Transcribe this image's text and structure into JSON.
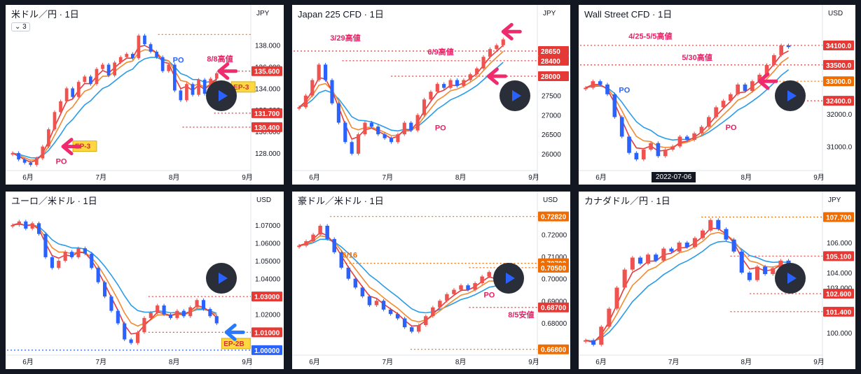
{
  "colors": {
    "up": "#ef5350",
    "down": "#2962ff",
    "ma_fast": "#e83a3a",
    "ma_mid": "#f28a2e",
    "ma_slow": "#2a9be8",
    "level": "#e53935",
    "orange_level": "#ef6c00",
    "annot": "#e91e63",
    "po": "#e91e63",
    "po_blue": "#2962ff",
    "ep_fill": "#ffd740",
    "ep_text": "#d32f2f",
    "arrow_pink": "#f02b6d",
    "arrow_blue": "#2979ff",
    "axis_text": "#131722"
  },
  "icons": {
    "play": "play-icon",
    "arrow": "arrow-icon",
    "interval": "chevron-down-icon"
  },
  "panels": [
    {
      "title": "米ドル／円 · 1日",
      "currency": "JPY",
      "interval_badge": "3",
      "chart_data": {
        "type": "candlestick",
        "title": "米ドル／円 · 1日",
        "ylim": [
          126.5,
          139.8
        ],
        "xlabels": [
          "6月",
          "7月",
          "8月",
          "9月"
        ],
        "yticks": [
          "138.000",
          "136.000",
          "134.000",
          "132.000",
          "130.000",
          "128.000"
        ],
        "series": [
          {
            "name": "price",
            "values": [
              128.0,
              127.4,
              127.1,
              126.9,
              127.5,
              128.6,
              130.2,
              131.8,
              132.8,
              134.0,
              133.2,
              134.6,
              135.1,
              134.4,
              135.8,
              136.2,
              135.2,
              136.4,
              136.9,
              137.2,
              136.8,
              138.9,
              138.1,
              137.4,
              136.9,
              135.6,
              136.2,
              133.8,
              132.9,
              134.4,
              133.4,
              134.8,
              133.5,
              134.9,
              135.4
            ]
          }
        ],
        "levels": [
          {
            "label": "",
            "price": 139.0,
            "color": "orange_level",
            "start": 0.62
          },
          {
            "label": "135.600",
            "price": 135.6,
            "color": "level",
            "start": 0.92
          },
          {
            "label": "131.700",
            "price": 131.7,
            "color": "level",
            "start": 0.85
          },
          {
            "label": "130.400",
            "price": 130.4,
            "color": "level",
            "start": 0.72
          }
        ],
        "annotations": [
          {
            "text": "PO",
            "x": 0.2,
            "price": 127.0,
            "color": "po"
          },
          {
            "text": "PO",
            "x": 0.68,
            "price": 136.4,
            "color": "po_blue"
          },
          {
            "text": "8/8高値",
            "x": 0.82,
            "price": 136.5,
            "color": "annot"
          }
        ],
        "ep": [
          {
            "text": "EP-3",
            "x": 0.27,
            "price": 128.6
          },
          {
            "text": "EP-3",
            "x": 0.92,
            "price": 134.1
          }
        ],
        "arrows": [
          {
            "x": 0.23,
            "price": 128.6,
            "dir": "left",
            "color": "arrow_pink"
          },
          {
            "x": 0.87,
            "price": 135.6,
            "dir": "left",
            "color": "arrow_pink"
          }
        ]
      }
    },
    {
      "title": "Japan 225 CFD · 1日",
      "currency": "JPY",
      "chart_data": {
        "type": "candlestick",
        "title": "Japan 225 CFD · 1日",
        "ylim": [
          25600,
          29300
        ],
        "xlabels": [
          "6月",
          "7月",
          "8月",
          "9月"
        ],
        "yticks": [
          "27500",
          "27000",
          "26500",
          "26000"
        ],
        "series": [
          {
            "name": "price",
            "values": [
              27200,
              27500,
              27900,
              28300,
              27900,
              27300,
              26800,
              26300,
              26000,
              26500,
              26800,
              26700,
              26500,
              26400,
              26300,
              26500,
              26800,
              26600,
              27000,
              27400,
              27600,
              27800,
              27700,
              27900,
              27750,
              27900,
              28050,
              28200,
              28500,
              28700,
              28800,
              28950
            ]
          }
        ],
        "levels": [
          {
            "label": "28650",
            "price": 28650,
            "color": "level",
            "start": 0.0
          },
          {
            "label": "28400",
            "price": 28400,
            "color": "level",
            "start": 0.2
          },
          {
            "label": "28000",
            "price": 28000,
            "color": "level",
            "start": 0.4
          }
        ],
        "annotations": [
          {
            "text": "3/29高値",
            "x": 0.15,
            "price": 28920,
            "color": "annot"
          },
          {
            "text": "6/9高値",
            "x": 0.55,
            "price": 28560,
            "color": "annot"
          },
          {
            "text": "PO",
            "x": 0.58,
            "price": 26600,
            "color": "po"
          }
        ],
        "ep": [],
        "arrows": [
          {
            "x": 0.86,
            "price": 29150,
            "dir": "left",
            "color": "arrow_pink"
          },
          {
            "x": 0.8,
            "price": 28000,
            "dir": "left",
            "color": "arrow_pink"
          }
        ]
      }
    },
    {
      "title": "Wall Street CFD · 1日",
      "currency": "USD",
      "date_tag": "2022-07-06",
      "chart_data": {
        "type": "candlestick",
        "title": "Wall Street CFD · 1日",
        "ylim": [
          30300,
          34700
        ],
        "xlabels": [
          "6月",
          "7月",
          "8月",
          "9月"
        ],
        "yticks": [
          "32000.0",
          "31000.0"
        ],
        "series": [
          {
            "name": "price",
            "values": [
              32800,
              33000,
              32900,
              32600,
              31900,
              31300,
              30800,
              30600,
              30900,
              31100,
              30700,
              30900,
              31000,
              31300,
              31200,
              31400,
              31600,
              31900,
              32200,
              32400,
              32600,
              32900,
              32700,
              33000,
              33200,
              33500,
              33800,
              34100,
              34050
            ]
          }
        ],
        "levels": [
          {
            "label": "34100.0",
            "price": 34100,
            "color": "level",
            "start": 0.0
          },
          {
            "label": "33500.0",
            "price": 33500,
            "color": "level",
            "start": 0.0
          },
          {
            "label": "33000.0",
            "price": 33000,
            "color": "orange_level",
            "start": 0.75
          },
          {
            "label": "32400.0",
            "price": 32400,
            "color": "level",
            "start": 0.85
          }
        ],
        "annotations": [
          {
            "text": "4/25-5/5高値",
            "x": 0.2,
            "price": 34300,
            "color": "annot"
          },
          {
            "text": "5/30高値",
            "x": 0.42,
            "price": 33650,
            "color": "annot"
          },
          {
            "text": "PO",
            "x": 0.16,
            "price": 32650,
            "color": "po_blue"
          },
          {
            "text": "PO",
            "x": 0.6,
            "price": 31500,
            "color": "po"
          }
        ],
        "ep": [],
        "arrows": [
          {
            "x": 0.74,
            "price": 33000,
            "dir": "left",
            "color": "arrow_pink"
          }
        ]
      }
    },
    {
      "title": "ユーロ／米ドル · 1日",
      "currency": "USD",
      "chart_data": {
        "type": "candlestick",
        "title": "ユーロ／米ドル · 1日",
        "ylim": [
          0.998,
          1.077
        ],
        "xlabels": [
          "6月",
          "7月",
          "8月",
          "9月"
        ],
        "yticks": [
          "1.07000",
          "1.06000",
          "1.05000",
          "1.04000",
          "1.03000",
          "1.02000",
          "1.01000",
          "1.00000"
        ],
        "series": [
          {
            "name": "price",
            "values": [
              1.07,
              1.072,
              1.068,
              1.071,
              1.065,
              1.052,
              1.046,
              1.05,
              1.055,
              1.052,
              1.057,
              1.054,
              1.046,
              1.038,
              1.03,
              1.022,
              1.015,
              1.006,
              1.004,
              1.01,
              1.018,
              1.021,
              1.025,
              1.02,
              1.018,
              1.022,
              1.019,
              1.024,
              1.028,
              1.023,
              1.019,
              1.015
            ]
          }
        ],
        "levels": [
          {
            "label": "1.03000",
            "price": 1.03,
            "color": "level",
            "start": 0.58
          },
          {
            "label": "1.01000",
            "price": 1.01,
            "color": "level",
            "start": 0.58
          },
          {
            "label": "1.00000",
            "price": 1.0,
            "color": "po_blue",
            "start": 0.0
          }
        ],
        "annotations": [],
        "ep": [
          {
            "text": "EP-2B",
            "x": 0.88,
            "price": 1.0035
          }
        ],
        "arrows": [
          {
            "x": 0.9,
            "price": 1.01,
            "dir": "left",
            "color": "arrow_blue"
          }
        ]
      }
    },
    {
      "title": "豪ドル／米ドル · 1日",
      "currency": "USD",
      "chart_data": {
        "type": "candlestick",
        "title": "豪ドル／米ドル · 1日",
        "ylim": [
          0.666,
          0.73
        ],
        "xlabels": [
          "6月",
          "7月",
          "8月",
          "9月"
        ],
        "yticks": [
          "0.72000",
          "0.71000",
          "0.70000",
          "0.69000",
          "0.68000"
        ],
        "series": [
          {
            "name": "price",
            "values": [
              0.715,
              0.717,
              0.72,
              0.724,
              0.718,
              0.712,
              0.705,
              0.7,
              0.696,
              0.692,
              0.688,
              0.69,
              0.686,
              0.684,
              0.682,
              0.678,
              0.676,
              0.679,
              0.683,
              0.687,
              0.69,
              0.693,
              0.695,
              0.697,
              0.695,
              0.698,
              0.701,
              0.703,
              0.699,
              0.696
            ]
          }
        ],
        "levels": [
          {
            "label": "0.72820",
            "price": 0.7282,
            "color": "orange_level",
            "start": 0.15
          },
          {
            "label": "0.70700",
            "price": 0.707,
            "color": "orange_level",
            "start": 0.2
          },
          {
            "label": "0.70500",
            "price": 0.705,
            "color": "orange_level",
            "start": 0.72
          },
          {
            "label": "0.68700",
            "price": 0.687,
            "color": "level",
            "start": 0.72
          },
          {
            "label": "0.66800",
            "price": 0.668,
            "color": "orange_level",
            "start": 0.48
          }
        ],
        "annotations": [
          {
            "text": "6/16",
            "x": 0.2,
            "price": 0.7095,
            "color": "orange_level"
          },
          {
            "text": "PO",
            "x": 0.78,
            "price": 0.6915,
            "color": "po"
          },
          {
            "text": "8/5安値",
            "x": 0.88,
            "price": 0.6825,
            "color": "annot"
          }
        ],
        "ep": [],
        "arrows": []
      }
    },
    {
      "title": "カナダドル／円 · 1日",
      "currency": "JPY",
      "chart_data": {
        "type": "candlestick",
        "title": "カナダドル／円 · 1日",
        "ylim": [
          98.6,
          108.0
        ],
        "xlabels": [
          "6月",
          "7月",
          "8月",
          "9月"
        ],
        "yticks": [
          "106.000",
          "105.000",
          "104.000",
          "103.000",
          "100.000"
        ],
        "series": [
          {
            "name": "price",
            "values": [
              99.5,
              99.2,
              100.4,
              101.6,
              103.0,
              104.2,
              105.0,
              104.6,
              105.2,
              104.8,
              105.6,
              105.4,
              106.0,
              105.7,
              106.3,
              106.8,
              107.5,
              106.9,
              106.2,
              105.4,
              104.0,
              103.5,
              104.4,
              103.9,
              104.3,
              104.8,
              104.6
            ]
          }
        ],
        "levels": [
          {
            "label": "107.700",
            "price": 107.7,
            "color": "orange_level",
            "start": 0.5
          },
          {
            "label": "105.100",
            "price": 105.1,
            "color": "level",
            "start": 0.62
          },
          {
            "label": "102.600",
            "price": 102.6,
            "color": "level",
            "start": 0.7
          },
          {
            "label": "101.400",
            "price": 101.4,
            "color": "level",
            "start": 0.62
          }
        ],
        "annotations": [],
        "ep": [],
        "arrows": []
      }
    }
  ]
}
